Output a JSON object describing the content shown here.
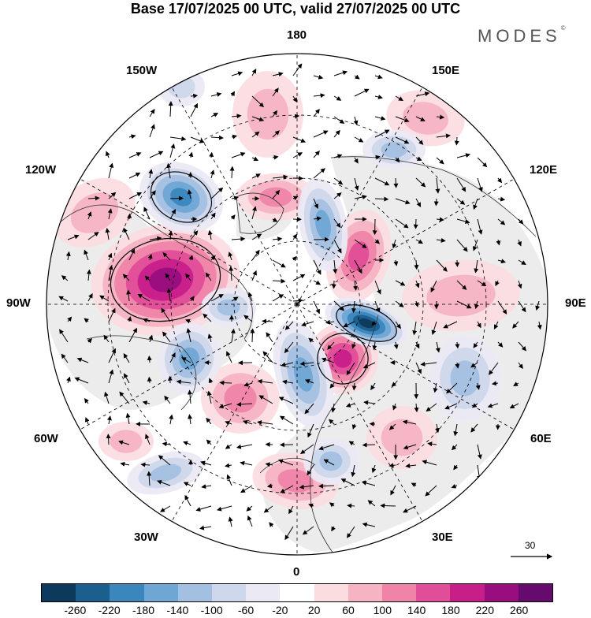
{
  "header": {
    "title": "Base 17/07/2025 00 UTC, valid 27/07/2025 00 UTC",
    "brand": "MODES",
    "brand_mark": "©"
  },
  "map": {
    "projection": "north-polar-stereographic",
    "longitude_labels": {
      "top": "180",
      "top_left": "150W",
      "top_right": "150E",
      "upper_left": "120W",
      "upper_right": "120E",
      "left": "90W",
      "right": "90E",
      "lower_left": "60W",
      "lower_right": "60E",
      "bottom_left": "30W",
      "bottom_right": "30E",
      "bottom": "0"
    },
    "reference_vector_label": "30"
  },
  "colorbar": {
    "segment_colors": [
      "#0d3a5c",
      "#1a5f8e",
      "#3a86bd",
      "#6ea6d4",
      "#a3c0e0",
      "#cfd7eb",
      "#ebe9f4",
      "#ffffff",
      "#fbdde1",
      "#f6b3c3",
      "#ef84a8",
      "#e04d99",
      "#c71e8a",
      "#990e7e",
      "#660a6e"
    ],
    "tick_labels": [
      "-260",
      "-220",
      "-180",
      "-140",
      "-100",
      "-60",
      "-20",
      "20",
      "60",
      "100",
      "140",
      "180",
      "220",
      "260"
    ]
  }
}
